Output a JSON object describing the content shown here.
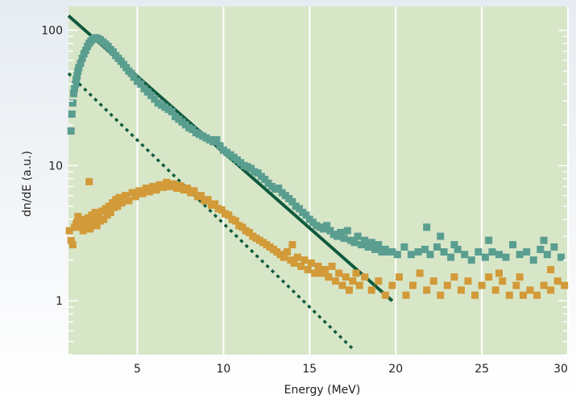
{
  "chart_data": {
    "type": "scatter",
    "xlabel": "Energy (MeV)",
    "ylabel": "dn/dE (a.u.)",
    "xlim": [
      1,
      30
    ],
    "ylim": [
      0.4,
      150
    ],
    "y_scale": "log",
    "x_ticks": [
      5,
      10,
      15,
      20,
      25,
      30
    ],
    "x_tick_labels": [
      "5",
      "10",
      "15",
      "20",
      "25",
      "30"
    ],
    "y_ticks": [
      1,
      10,
      100
    ],
    "y_tick_labels": [
      "1",
      "10",
      "100"
    ],
    "grid": "vertical lines at x ticks",
    "colors": {
      "plot_background": "#d8e6c8",
      "grid": "#ffffff",
      "teal_series": "#5a9e90",
      "orange_series": "#d29a38",
      "fit_lines": "#0f5a3e"
    },
    "series": [
      {
        "color": "#5a9e90",
        "marker": "square",
        "points": [
          [
            1.15,
            18
          ],
          [
            1.2,
            24
          ],
          [
            1.25,
            29
          ],
          [
            1.3,
            34
          ],
          [
            1.35,
            37
          ],
          [
            1.4,
            40
          ],
          [
            1.45,
            43
          ],
          [
            1.5,
            46
          ],
          [
            1.55,
            50
          ],
          [
            1.6,
            53
          ],
          [
            1.7,
            57
          ],
          [
            1.8,
            62
          ],
          [
            1.9,
            67
          ],
          [
            2.0,
            71
          ],
          [
            2.1,
            76
          ],
          [
            2.2,
            80
          ],
          [
            2.3,
            83
          ],
          [
            2.4,
            86
          ],
          [
            2.5,
            87
          ],
          [
            2.6,
            88
          ],
          [
            2.7,
            87
          ],
          [
            2.85,
            85
          ],
          [
            3.0,
            82
          ],
          [
            3.15,
            79
          ],
          [
            3.3,
            76
          ],
          [
            3.45,
            72
          ],
          [
            3.6,
            69
          ],
          [
            3.75,
            65
          ],
          [
            3.9,
            62
          ],
          [
            4.05,
            59
          ],
          [
            4.2,
            56
          ],
          [
            4.35,
            53
          ],
          [
            4.5,
            50
          ],
          [
            4.65,
            48
          ],
          [
            4.8,
            45
          ],
          [
            5.0,
            42
          ],
          [
            5.2,
            40
          ],
          [
            5.4,
            37
          ],
          [
            5.6,
            35
          ],
          [
            5.8,
            33
          ],
          [
            6.0,
            31
          ],
          [
            6.2,
            29
          ],
          [
            6.4,
            28
          ],
          [
            6.6,
            27
          ],
          [
            6.8,
            26
          ],
          [
            7.0,
            25
          ],
          [
            7.2,
            23
          ],
          [
            7.4,
            22
          ],
          [
            7.6,
            21
          ],
          [
            7.8,
            20
          ],
          [
            8.0,
            19
          ],
          [
            8.2,
            18.5
          ],
          [
            8.4,
            17.5
          ],
          [
            8.6,
            17
          ],
          [
            8.8,
            16.5
          ],
          [
            9.0,
            16
          ],
          [
            9.2,
            15.5
          ],
          [
            9.4,
            15
          ],
          [
            9.6,
            15.5
          ],
          [
            9.8,
            14
          ],
          [
            10.0,
            13
          ],
          [
            10.2,
            12.5
          ],
          [
            10.4,
            12
          ],
          [
            10.6,
            11.5
          ],
          [
            10.8,
            11
          ],
          [
            11.0,
            10.5
          ],
          [
            11.2,
            10
          ],
          [
            11.4,
            9.8
          ],
          [
            11.6,
            9.5
          ],
          [
            11.8,
            9
          ],
          [
            12.0,
            8.8
          ],
          [
            12.2,
            8.3
          ],
          [
            12.4,
            7.9
          ],
          [
            12.6,
            7.4
          ],
          [
            12.8,
            7.0
          ],
          [
            13.0,
            6.7
          ],
          [
            13.2,
            6.8
          ],
          [
            13.4,
            6.3
          ],
          [
            13.6,
            6.0
          ],
          [
            13.8,
            5.7
          ],
          [
            14.0,
            5.4
          ],
          [
            14.2,
            5.0
          ],
          [
            14.4,
            4.8
          ],
          [
            14.6,
            4.5
          ],
          [
            14.8,
            4.3
          ],
          [
            15.0,
            4.0
          ],
          [
            15.2,
            3.8
          ],
          [
            15.4,
            3.6
          ],
          [
            15.6,
            3.5
          ],
          [
            15.8,
            3.4
          ],
          [
            16.0,
            3.6
          ],
          [
            16.2,
            3.3
          ],
          [
            16.4,
            3.1
          ],
          [
            16.6,
            3.0
          ],
          [
            16.8,
            3.2
          ],
          [
            17.0,
            2.9
          ],
          [
            17.2,
            3.3
          ],
          [
            17.4,
            2.8
          ],
          [
            17.6,
            2.7
          ],
          [
            17.8,
            3.0
          ],
          [
            18.0,
            2.6
          ],
          [
            18.2,
            2.8
          ],
          [
            18.4,
            2.5
          ],
          [
            18.6,
            2.7
          ],
          [
            18.8,
            2.4
          ],
          [
            19.0,
            2.6
          ],
          [
            19.2,
            2.3
          ],
          [
            19.4,
            2.4
          ],
          [
            19.6,
            2.3
          ],
          [
            19.8,
            2.3
          ],
          [
            20.1,
            2.2
          ],
          [
            20.5,
            2.5
          ],
          [
            20.9,
            2.2
          ],
          [
            21.3,
            2.3
          ],
          [
            21.7,
            2.4
          ],
          [
            22.0,
            2.2
          ],
          [
            22.4,
            2.5
          ],
          [
            22.8,
            2.3
          ],
          [
            23.2,
            2.1
          ],
          [
            23.6,
            2.4
          ],
          [
            24.0,
            2.2
          ],
          [
            24.4,
            2.0
          ],
          [
            24.8,
            2.3
          ],
          [
            25.2,
            2.1
          ],
          [
            25.6,
            2.3
          ],
          [
            26.0,
            2.2
          ],
          [
            26.4,
            2.1
          ],
          [
            26.8,
            2.6
          ],
          [
            27.2,
            2.2
          ],
          [
            27.6,
            2.3
          ],
          [
            28.0,
            2.0
          ],
          [
            28.4,
            2.4
          ],
          [
            28.8,
            2.2
          ],
          [
            29.2,
            2.5
          ],
          [
            29.6,
            2.1
          ],
          [
            21.8,
            3.5
          ],
          [
            22.6,
            3.0
          ],
          [
            25.4,
            2.8
          ],
          [
            28.6,
            2.8
          ],
          [
            23.4,
            2.6
          ]
        ]
      },
      {
        "color": "#d29a38",
        "marker": "square",
        "points": [
          [
            1.05,
            3.3
          ],
          [
            1.15,
            2.8
          ],
          [
            1.25,
            2.6
          ],
          [
            1.35,
            3.5
          ],
          [
            1.45,
            3.8
          ],
          [
            1.55,
            4.2
          ],
          [
            1.65,
            3.5
          ],
          [
            1.75,
            3.9
          ],
          [
            1.85,
            3.3
          ],
          [
            1.95,
            4.0
          ],
          [
            2.05,
            3.6
          ],
          [
            2.15,
            4.1
          ],
          [
            2.25,
            3.4
          ],
          [
            2.35,
            4.3
          ],
          [
            2.45,
            3.8
          ],
          [
            2.55,
            4.5
          ],
          [
            2.65,
            3.6
          ],
          [
            2.75,
            4.2
          ],
          [
            2.85,
            3.9
          ],
          [
            2.95,
            4.6
          ],
          [
            3.05,
            4.0
          ],
          [
            3.15,
            4.8
          ],
          [
            3.25,
            4.3
          ],
          [
            3.35,
            5.0
          ],
          [
            3.45,
            4.5
          ],
          [
            3.55,
            5.3
          ],
          [
            3.65,
            4.9
          ],
          [
            3.75,
            5.6
          ],
          [
            3.85,
            5.0
          ],
          [
            3.95,
            5.8
          ],
          [
            4.1,
            5.3
          ],
          [
            4.3,
            6.0
          ],
          [
            4.5,
            5.5
          ],
          [
            4.7,
            6.3
          ],
          [
            4.9,
            5.9
          ],
          [
            5.1,
            6.5
          ],
          [
            5.3,
            6.2
          ],
          [
            5.5,
            6.8
          ],
          [
            5.7,
            6.4
          ],
          [
            5.9,
            7.0
          ],
          [
            6.1,
            6.6
          ],
          [
            6.3,
            7.2
          ],
          [
            6.5,
            6.9
          ],
          [
            6.7,
            7.5
          ],
          [
            6.9,
            7.0
          ],
          [
            7.1,
            7.3
          ],
          [
            7.3,
            6.8
          ],
          [
            7.5,
            7.1
          ],
          [
            7.7,
            6.6
          ],
          [
            7.9,
            6.8
          ],
          [
            8.1,
            6.3
          ],
          [
            8.3,
            6.5
          ],
          [
            8.5,
            5.9
          ],
          [
            8.7,
            6.0
          ],
          [
            8.9,
            5.5
          ],
          [
            9.1,
            5.6
          ],
          [
            9.3,
            5.1
          ],
          [
            9.5,
            5.2
          ],
          [
            9.7,
            4.8
          ],
          [
            9.9,
            4.7
          ],
          [
            10.1,
            4.4
          ],
          [
            10.3,
            4.3
          ],
          [
            10.5,
            4.0
          ],
          [
            10.7,
            3.9
          ],
          [
            10.9,
            3.6
          ],
          [
            11.1,
            3.5
          ],
          [
            11.3,
            3.3
          ],
          [
            11.5,
            3.2
          ],
          [
            11.7,
            3.0
          ],
          [
            11.9,
            2.9
          ],
          [
            12.1,
            2.8
          ],
          [
            12.3,
            2.7
          ],
          [
            12.5,
            2.6
          ],
          [
            12.7,
            2.5
          ],
          [
            12.9,
            2.4
          ],
          [
            13.1,
            2.3
          ],
          [
            13.3,
            2.2
          ],
          [
            13.5,
            2.1
          ],
          [
            13.7,
            2.3
          ],
          [
            13.9,
            2.0
          ],
          [
            14.1,
            1.9
          ],
          [
            14.3,
            2.1
          ],
          [
            14.5,
            1.8
          ],
          [
            14.7,
            2.0
          ],
          [
            14.9,
            1.7
          ],
          [
            15.1,
            1.9
          ],
          [
            15.3,
            1.6
          ],
          [
            15.5,
            1.8
          ],
          [
            15.7,
            1.6
          ],
          [
            15.9,
            1.7
          ],
          [
            16.1,
            1.5
          ],
          [
            16.3,
            1.8
          ],
          [
            16.5,
            1.4
          ],
          [
            16.7,
            1.6
          ],
          [
            16.9,
            1.3
          ],
          [
            17.1,
            1.5
          ],
          [
            17.3,
            1.2
          ],
          [
            17.5,
            1.4
          ],
          [
            17.7,
            1.6
          ],
          [
            17.9,
            1.3
          ],
          [
            18.2,
            1.5
          ],
          [
            18.6,
            1.2
          ],
          [
            19.0,
            1.4
          ],
          [
            19.4,
            1.1
          ],
          [
            19.8,
            1.3
          ],
          [
            20.2,
            1.5
          ],
          [
            20.6,
            1.1
          ],
          [
            21.0,
            1.3
          ],
          [
            21.4,
            1.6
          ],
          [
            21.8,
            1.2
          ],
          [
            22.2,
            1.4
          ],
          [
            22.6,
            1.1
          ],
          [
            23.0,
            1.3
          ],
          [
            23.4,
            1.5
          ],
          [
            23.8,
            1.2
          ],
          [
            24.2,
            1.4
          ],
          [
            24.6,
            1.1
          ],
          [
            25.0,
            1.3
          ],
          [
            25.4,
            1.5
          ],
          [
            25.8,
            1.2
          ],
          [
            26.2,
            1.4
          ],
          [
            26.6,
            1.1
          ],
          [
            27.0,
            1.3
          ],
          [
            27.4,
            1.1
          ],
          [
            27.8,
            1.2
          ],
          [
            28.2,
            1.1
          ],
          [
            28.6,
            1.3
          ],
          [
            29.0,
            1.2
          ],
          [
            29.4,
            1.4
          ],
          [
            29.8,
            1.3
          ],
          [
            2.2,
            7.6
          ],
          [
            14.0,
            2.6
          ],
          [
            26.0,
            1.6
          ],
          [
            27.2,
            1.5
          ],
          [
            29.0,
            1.7
          ]
        ]
      }
    ],
    "fit_lines": [
      {
        "style": "solid",
        "color": "#0f5a3e",
        "x": [
          1.0,
          19.8
        ],
        "y": [
          128,
          1.0
        ]
      },
      {
        "style": "dotted",
        "color": "#0f5a3e",
        "x": [
          1.0,
          17.6
        ],
        "y": [
          48,
          0.43
        ]
      }
    ]
  }
}
